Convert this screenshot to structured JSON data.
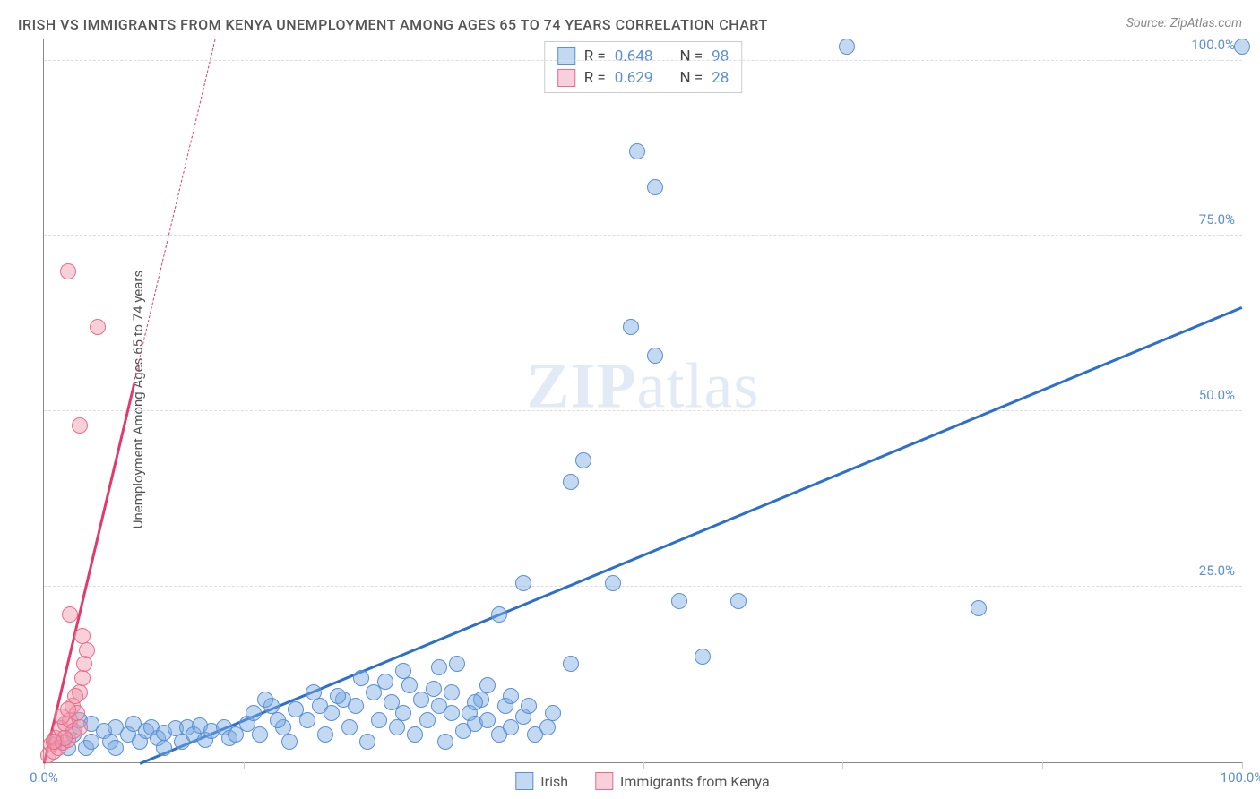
{
  "title": "IRISH VS IMMIGRANTS FROM KENYA UNEMPLOYMENT AMONG AGES 65 TO 74 YEARS CORRELATION CHART",
  "source": "Source: ZipAtlas.com",
  "watermark_a": "ZIP",
  "watermark_b": "atlas",
  "y_axis_label": "Unemployment Among Ages 65 to 74 years",
  "chart": {
    "type": "scatter",
    "xlim": [
      0,
      100
    ],
    "ylim": [
      0,
      103
    ],
    "background_color": "#ffffff",
    "grid_color": "#dddddd",
    "axis_color": "#888888",
    "y_ticks": [
      {
        "value": 25,
        "label": "25.0%"
      },
      {
        "value": 50,
        "label": "50.0%"
      },
      {
        "value": 75,
        "label": "75.0%"
      },
      {
        "value": 100,
        "label": "100.0%"
      }
    ],
    "y_tick_color": "#5b8fd6",
    "x_ticks": [
      {
        "value": 0,
        "label": "0.0%"
      },
      {
        "value": 100,
        "label": "100.0%"
      }
    ],
    "x_tick_marks": [
      0,
      16.67,
      33.33,
      50,
      66.67,
      83.33,
      100
    ],
    "x_tick_color": "#5b8fd6",
    "point_radius": 9,
    "series": [
      {
        "name": "Irish",
        "fill_color": "rgba(120, 170, 225, 0.45)",
        "stroke_color": "#5b8fd6",
        "trend_color": "#2d6fcf",
        "trend_width": 2.5,
        "trend_style": "solid",
        "trend_p1": {
          "x": 8,
          "y": 0
        },
        "trend_p2": {
          "x": 100,
          "y": 65
        },
        "r_value": "0.648",
        "n_value": "98",
        "points": [
          {
            "x": 1,
            "y": 3
          },
          {
            "x": 2,
            "y": 2
          },
          {
            "x": 2.5,
            "y": 4
          },
          {
            "x": 3,
            "y": 6
          },
          {
            "x": 3.5,
            "y": 2
          },
          {
            "x": 4,
            "y": 5.5
          },
          {
            "x": 4,
            "y": 3
          },
          {
            "x": 5,
            "y": 4.5
          },
          {
            "x": 5.5,
            "y": 3
          },
          {
            "x": 6,
            "y": 5
          },
          {
            "x": 6,
            "y": 2
          },
          {
            "x": 7,
            "y": 4
          },
          {
            "x": 7.5,
            "y": 5.5
          },
          {
            "x": 8,
            "y": 3
          },
          {
            "x": 8.5,
            "y": 4.5
          },
          {
            "x": 9,
            "y": 5
          },
          {
            "x": 9.5,
            "y": 3.5
          },
          {
            "x": 10,
            "y": 4.2
          },
          {
            "x": 10,
            "y": 2
          },
          {
            "x": 11,
            "y": 4.8
          },
          {
            "x": 11.5,
            "y": 3
          },
          {
            "x": 12,
            "y": 5
          },
          {
            "x": 12.5,
            "y": 4
          },
          {
            "x": 13,
            "y": 5.2
          },
          {
            "x": 13.5,
            "y": 3.2
          },
          {
            "x": 14,
            "y": 4.5
          },
          {
            "x": 15,
            "y": 5
          },
          {
            "x": 15.5,
            "y": 3.5
          },
          {
            "x": 16,
            "y": 4
          },
          {
            "x": 17,
            "y": 5.5
          },
          {
            "x": 17.5,
            "y": 7
          },
          {
            "x": 18,
            "y": 4
          },
          {
            "x": 19,
            "y": 8
          },
          {
            "x": 20,
            "y": 5
          },
          {
            "x": 20.5,
            "y": 3
          },
          {
            "x": 21,
            "y": 7.5
          },
          {
            "x": 22,
            "y": 6
          },
          {
            "x": 23,
            "y": 8
          },
          {
            "x": 23.5,
            "y": 4
          },
          {
            "x": 24,
            "y": 7
          },
          {
            "x": 25,
            "y": 9
          },
          {
            "x": 25.5,
            "y": 5
          },
          {
            "x": 26,
            "y": 8
          },
          {
            "x": 27,
            "y": 3
          },
          {
            "x": 27.5,
            "y": 10
          },
          {
            "x": 28,
            "y": 6
          },
          {
            "x": 29,
            "y": 8.5
          },
          {
            "x": 29.5,
            "y": 5
          },
          {
            "x": 30,
            "y": 7
          },
          {
            "x": 30.5,
            "y": 11
          },
          {
            "x": 31,
            "y": 4
          },
          {
            "x": 31.5,
            "y": 9
          },
          {
            "x": 32,
            "y": 6
          },
          {
            "x": 33,
            "y": 8
          },
          {
            "x": 33.5,
            "y": 3
          },
          {
            "x": 34,
            "y": 10
          },
          {
            "x": 35,
            "y": 4.5
          },
          {
            "x": 35.5,
            "y": 7
          },
          {
            "x": 36,
            "y": 5.5
          },
          {
            "x": 36.5,
            "y": 9
          },
          {
            "x": 37,
            "y": 6
          },
          {
            "x": 38,
            "y": 4
          },
          {
            "x": 38.5,
            "y": 8
          },
          {
            "x": 39,
            "y": 5
          },
          {
            "x": 40,
            "y": 6.5
          },
          {
            "x": 41,
            "y": 4
          },
          {
            "x": 42,
            "y": 5
          },
          {
            "x": 42.5,
            "y": 7
          },
          {
            "x": 33,
            "y": 13.5
          },
          {
            "x": 34.5,
            "y": 14
          },
          {
            "x": 38,
            "y": 21
          },
          {
            "x": 40,
            "y": 25.5
          },
          {
            "x": 44,
            "y": 14
          },
          {
            "x": 44,
            "y": 40
          },
          {
            "x": 45,
            "y": 43
          },
          {
            "x": 47.5,
            "y": 25.5
          },
          {
            "x": 49,
            "y": 62
          },
          {
            "x": 49.5,
            "y": 87
          },
          {
            "x": 51,
            "y": 82
          },
          {
            "x": 51,
            "y": 58
          },
          {
            "x": 53,
            "y": 23
          },
          {
            "x": 55,
            "y": 15
          },
          {
            "x": 58,
            "y": 23
          },
          {
            "x": 67,
            "y": 102
          },
          {
            "x": 78,
            "y": 22
          },
          {
            "x": 100,
            "y": 102
          },
          {
            "x": 40.5,
            "y": 8
          },
          {
            "x": 26.5,
            "y": 12
          },
          {
            "x": 28.5,
            "y": 11.5
          },
          {
            "x": 30,
            "y": 13
          },
          {
            "x": 32.5,
            "y": 10.5
          },
          {
            "x": 37,
            "y": 11
          },
          {
            "x": 34,
            "y": 7
          },
          {
            "x": 36,
            "y": 8.5
          },
          {
            "x": 39,
            "y": 9.5
          },
          {
            "x": 22.5,
            "y": 10
          },
          {
            "x": 24.5,
            "y": 9.5
          },
          {
            "x": 19.5,
            "y": 6
          },
          {
            "x": 18.5,
            "y": 9
          }
        ]
      },
      {
        "name": "Immigrants from Kenya",
        "fill_color": "rgba(240, 150, 170, 0.45)",
        "stroke_color": "#e76d8c",
        "trend_color": "#e03b6a",
        "trend_width": 2.5,
        "trend_style_lower": "solid",
        "trend_style_upper": "dashed",
        "trend_p1": {
          "x": 0,
          "y": 0
        },
        "trend_p2": {
          "x": 7.5,
          "y": 54
        },
        "trend_p2_extended": {
          "x": 14.3,
          "y": 103
        },
        "r_value": "0.629",
        "n_value": "28",
        "points": [
          {
            "x": 0.4,
            "y": 1
          },
          {
            "x": 0.6,
            "y": 2.5
          },
          {
            "x": 0.8,
            "y": 1.5
          },
          {
            "x": 1,
            "y": 3.5
          },
          {
            "x": 1.2,
            "y": 2
          },
          {
            "x": 1.4,
            "y": 4.8
          },
          {
            "x": 1.6,
            "y": 2.8
          },
          {
            "x": 1.8,
            "y": 5.5
          },
          {
            "x": 2,
            "y": 3.2
          },
          {
            "x": 2.2,
            "y": 6
          },
          {
            "x": 2.4,
            "y": 8
          },
          {
            "x": 2.5,
            "y": 4.5
          },
          {
            "x": 2.8,
            "y": 7
          },
          {
            "x": 3,
            "y": 10
          },
          {
            "x": 3.2,
            "y": 12
          },
          {
            "x": 3,
            "y": 5
          },
          {
            "x": 1.5,
            "y": 6.5
          },
          {
            "x": 2.6,
            "y": 9.5
          },
          {
            "x": 2,
            "y": 7.5
          },
          {
            "x": 1.7,
            "y": 3.5
          },
          {
            "x": 3.4,
            "y": 14
          },
          {
            "x": 3.6,
            "y": 16
          },
          {
            "x": 3.2,
            "y": 18
          },
          {
            "x": 2.2,
            "y": 21
          },
          {
            "x": 2.0,
            "y": 70
          },
          {
            "x": 4.5,
            "y": 62
          },
          {
            "x": 3,
            "y": 48
          },
          {
            "x": 0.8,
            "y": 3
          }
        ]
      }
    ]
  },
  "stats_box": {
    "rows": [
      {
        "swatch_fill": "rgba(120, 170, 225, 0.45)",
        "swatch_border": "#5b8fd6",
        "r_label": "R =",
        "r_value": "0.648",
        "n_label": "N =",
        "n_value": "98",
        "value_color": "#5b8fd6"
      },
      {
        "swatch_fill": "rgba(240, 150, 170, 0.45)",
        "swatch_border": "#e76d8c",
        "r_label": "R =",
        "r_value": "0.629",
        "n_label": "N =",
        "n_value": "28",
        "value_color": "#5b8fd6"
      }
    ]
  },
  "bottom_legend": [
    {
      "swatch_fill": "rgba(120, 170, 225, 0.45)",
      "swatch_border": "#5b8fd6",
      "label": "Irish"
    },
    {
      "swatch_fill": "rgba(240, 150, 170, 0.45)",
      "swatch_border": "#e76d8c",
      "label": "Immigrants from Kenya"
    }
  ]
}
